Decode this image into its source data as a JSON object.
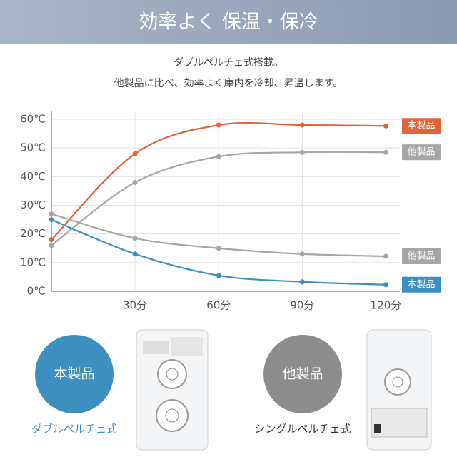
{
  "header": {
    "title": "効率よく 保温・保冷"
  },
  "description": [
    "ダブルペルチェ式搭載。",
    "他製品に比べ、効率よく庫内を冷却、昇温します。"
  ],
  "chart_data": {
    "type": "line",
    "x": [
      0,
      30,
      60,
      90,
      120
    ],
    "xlim": [
      0,
      125
    ],
    "xticks": [
      {
        "value": 30,
        "label": "30分"
      },
      {
        "value": 60,
        "label": "60分"
      },
      {
        "value": 90,
        "label": "90分"
      },
      {
        "value": 120,
        "label": "120分"
      }
    ],
    "ylim": [
      0,
      60
    ],
    "yticks": [
      {
        "value": 0,
        "label": "0℃"
      },
      {
        "value": 10,
        "label": "10℃"
      },
      {
        "value": 20,
        "label": "20℃"
      },
      {
        "value": 30,
        "label": "30℃"
      },
      {
        "value": 40,
        "label": "40℃"
      },
      {
        "value": 50,
        "label": "50℃"
      },
      {
        "value": 60,
        "label": "60℃"
      }
    ],
    "grid": true,
    "series": [
      {
        "name": "本製品",
        "color": "#e0643a",
        "values": [
          18,
          48,
          58,
          58,
          57.7
        ]
      },
      {
        "name": "他製品",
        "color": "#a6a6a6",
        "values": [
          16,
          38,
          47,
          48.5,
          48.5
        ]
      },
      {
        "name": "他製品",
        "color": "#a6a6a6",
        "values": [
          27,
          18.5,
          15,
          13,
          12.2
        ]
      },
      {
        "name": "本製品",
        "color": "#3d8fc0",
        "values": [
          25,
          13,
          5.5,
          3.3,
          2.3
        ]
      }
    ]
  },
  "comparison": [
    {
      "label": "本製品",
      "caption": "ダブルペルチェ式",
      "color": "#3d8fc0"
    },
    {
      "label": "他製品",
      "caption": "シングルペルチェ式",
      "color": "#8c8c8c"
    }
  ]
}
